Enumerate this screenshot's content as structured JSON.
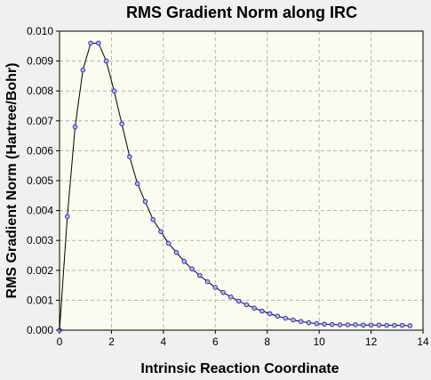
{
  "chart_data": {
    "type": "line",
    "title": "RMS Gradient Norm along IRC",
    "xlabel": "Intrinsic Reaction Coordinate",
    "ylabel": "RMS Gradient Norm (Hartree/Bohr)",
    "xlim": [
      0,
      14
    ],
    "ylim": [
      0,
      0.01
    ],
    "xticks": [
      0,
      2,
      4,
      6,
      8,
      10,
      12,
      14
    ],
    "yticks": [
      0.0,
      0.001,
      0.002,
      0.003,
      0.004,
      0.005,
      0.006,
      0.007,
      0.008,
      0.009,
      0.01
    ],
    "xtick_labels": [
      "0",
      "2",
      "4",
      "6",
      "8",
      "10",
      "12",
      "14"
    ],
    "ytick_labels": [
      "0.000",
      "0.001",
      "0.002",
      "0.003",
      "0.004",
      "0.005",
      "0.006",
      "0.007",
      "0.008",
      "0.009",
      "0.010"
    ],
    "grid": true,
    "colors": {
      "plot_background": "#fbfbef",
      "line": "#000000",
      "marker_fill": "#b4b4ff",
      "marker_edge": "#3232b4",
      "grid": "#b4b4b4"
    },
    "series": [
      {
        "x": [
          0.0,
          0.3,
          0.6,
          0.9,
          1.2,
          1.5,
          1.8,
          2.1,
          2.4,
          2.7,
          3.0,
          3.3,
          3.6,
          3.9,
          4.2,
          4.5,
          4.8,
          5.1,
          5.4,
          5.7,
          6.0,
          6.3,
          6.6,
          6.9,
          7.2,
          7.5,
          7.8,
          8.1,
          8.4,
          8.7,
          9.0,
          9.3,
          9.6,
          9.9,
          10.2,
          10.5,
          10.8,
          11.1,
          11.4,
          11.7,
          12.0,
          12.3,
          12.6,
          12.9,
          13.2,
          13.5
        ],
        "y": [
          0.0,
          0.0038,
          0.0068,
          0.0087,
          0.0096,
          0.0096,
          0.009,
          0.008,
          0.0069,
          0.0058,
          0.0049,
          0.0043,
          0.0037,
          0.0033,
          0.0029,
          0.0026,
          0.0023,
          0.00205,
          0.00183,
          0.00162,
          0.00143,
          0.00126,
          0.00111,
          0.00097,
          0.00085,
          0.00074,
          0.00064,
          0.00055,
          0.00047,
          0.0004,
          0.00034,
          0.00029,
          0.00025,
          0.00022,
          0.0002,
          0.00019,
          0.00018,
          0.00018,
          0.00018,
          0.00017,
          0.00017,
          0.00017,
          0.00016,
          0.00016,
          0.00016,
          0.00015
        ]
      }
    ]
  }
}
